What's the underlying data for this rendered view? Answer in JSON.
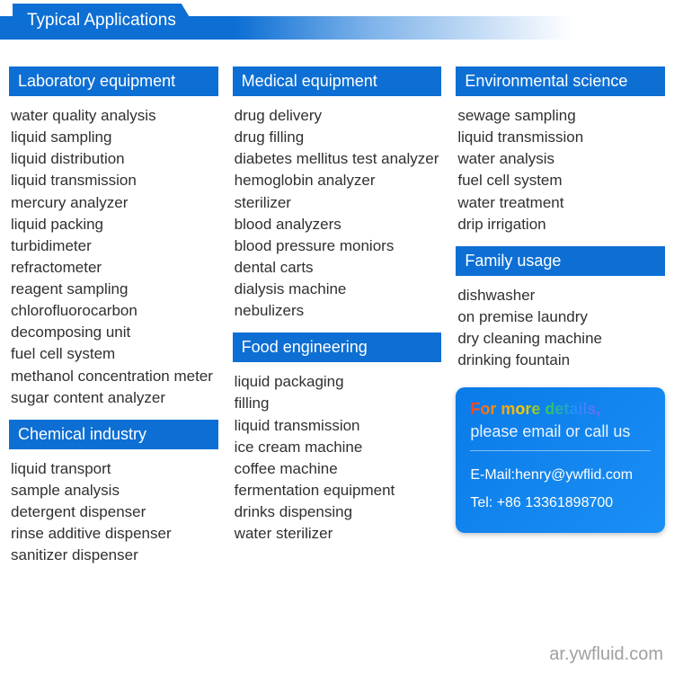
{
  "banner_title": "Typical Applications",
  "columns": [
    {
      "sections": [
        {
          "header": "Laboratory equipment",
          "items": [
            "water quality analysis",
            "liquid sampling",
            "liquid distribution",
            "liquid transmission",
            "mercury analyzer",
            "liquid packing",
            "turbidimeter",
            "refractometer",
            "reagent sampling",
            "chlorofluorocarbon decomposing unit",
            "fuel cell system",
            "methanol concentration meter",
            "sugar content analyzer"
          ]
        },
        {
          "header": "Chemical industry",
          "items": [
            "liquid transport",
            "sample analysis",
            "detergent dispenser",
            "rinse additive dispenser",
            "sanitizer dispenser"
          ]
        }
      ]
    },
    {
      "sections": [
        {
          "header": "Medical equipment",
          "items": [
            "drug delivery",
            "drug filling",
            "diabetes mellitus test analyzer",
            "hemoglobin analyzer",
            "sterilizer",
            "blood analyzers",
            "blood pressure moniors",
            "dental carts",
            "dialysis machine",
            "nebulizers"
          ]
        },
        {
          "header": "Food engineering",
          "items": [
            "liquid packaging",
            "filling",
            "liquid transmission",
            "ice cream machine",
            "coffee machine",
            "fermentation equipment",
            "drinks dispensing",
            "water sterilizer"
          ]
        }
      ]
    },
    {
      "sections": [
        {
          "header": "Environmental science",
          "items": [
            "sewage sampling",
            "liquid transmission",
            "water analysis",
            "fuel cell system",
            "water treatment",
            "drip irrigation"
          ]
        },
        {
          "header": "Family usage",
          "items": [
            "dishwasher",
            "on premise laundry",
            "dry cleaning machine",
            "drinking fountain"
          ]
        }
      ]
    }
  ],
  "contact": {
    "line1_grad": "For more details,",
    "line2": "please email or call us",
    "email_label": "E-Mail:henry@ywflid.com",
    "tel_label": "Tel: +86 13361898700"
  },
  "watermark": "ar.ywfluid.com",
  "colors": {
    "primary": "#0d6fd4",
    "text": "#303030",
    "contact_bg_start": "#0a7be8",
    "contact_bg_end": "#1a8ff5",
    "watermark": "#a0a0a0",
    "white": "#ffffff"
  }
}
